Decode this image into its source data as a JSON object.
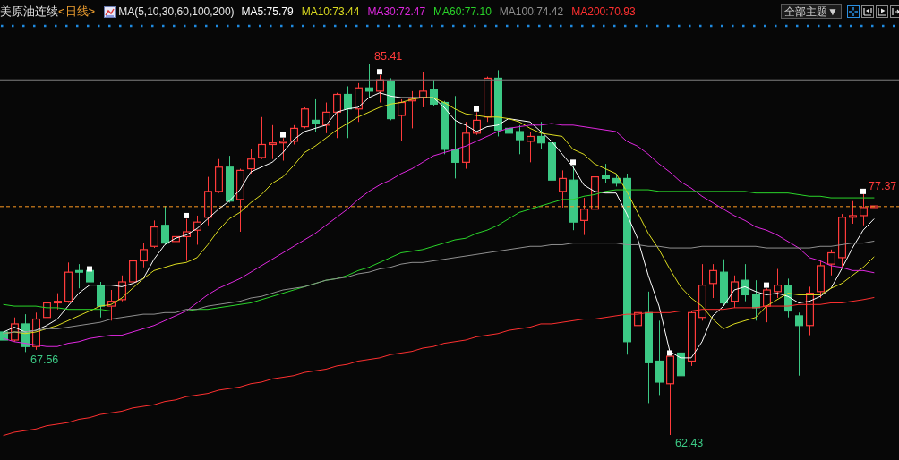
{
  "chart_data": {
    "type": "candlestick",
    "title": "美原油连续",
    "subtitle": "<日线>",
    "legend_title": "MA(5,10,30,60,100,200)",
    "legend": "top left",
    "tick_labels": false,
    "categories": [
      null,
      null,
      null,
      null,
      null,
      null,
      null,
      null,
      null,
      null,
      null,
      null,
      null,
      null,
      null,
      null,
      null,
      null,
      null,
      null,
      null,
      null,
      null,
      null,
      null,
      null,
      null,
      null,
      null,
      null,
      null,
      null,
      null,
      null,
      null,
      null,
      null,
      null,
      null,
      null,
      null,
      null,
      null,
      null,
      null,
      null,
      null,
      null,
      null,
      null,
      null,
      null,
      null,
      null,
      null,
      null,
      null,
      null,
      null,
      null,
      null,
      null,
      null,
      null,
      null,
      null,
      null,
      null,
      null,
      null,
      null,
      null,
      null,
      null,
      null,
      null,
      null,
      null,
      null,
      null,
      null,
      null
    ],
    "ohlc": [
      [
        68.8,
        69.4,
        67.6,
        68.3
      ],
      [
        68.3,
        69.7,
        68.2,
        69.3
      ],
      [
        69.3,
        69.9,
        67.56,
        67.9
      ],
      [
        67.9,
        70.0,
        67.7,
        69.6
      ],
      [
        69.7,
        71.0,
        69.5,
        70.6
      ],
      [
        70.6,
        71.2,
        70.2,
        70.7
      ],
      [
        70.7,
        73.1,
        70.6,
        72.5
      ],
      [
        72.6,
        73.0,
        71.5,
        72.5
      ],
      [
        72.6,
        72.6,
        71.2,
        71.9
      ],
      [
        71.7,
        71.9,
        69.7,
        70.4
      ],
      [
        70.4,
        71.4,
        69.5,
        70.7
      ],
      [
        70.8,
        72.3,
        70.7,
        71.9
      ],
      [
        71.9,
        73.5,
        71.6,
        73.2
      ],
      [
        73.2,
        74.3,
        72.8,
        73.9
      ],
      [
        74.1,
        75.7,
        74.0,
        75.3
      ],
      [
        75.4,
        76.6,
        74.2,
        74.3
      ],
      [
        74.4,
        75.8,
        73.7,
        74.7
      ],
      [
        74.7,
        75.8,
        73.2,
        75.0
      ],
      [
        75.1,
        76.0,
        74.2,
        75.6
      ],
      [
        75.9,
        78.4,
        75.4,
        77.5
      ],
      [
        77.5,
        79.5,
        77.4,
        79.0
      ],
      [
        79.0,
        79.7,
        76.8,
        76.9
      ],
      [
        77.0,
        78.9,
        75.0,
        78.8
      ],
      [
        78.9,
        80.1,
        78.6,
        79.5
      ],
      [
        79.6,
        82.1,
        79.5,
        80.4
      ],
      [
        80.4,
        81.6,
        79.5,
        80.5
      ],
      [
        80.5,
        80.8,
        79.4,
        80.6
      ],
      [
        80.6,
        81.6,
        80.4,
        81.4
      ],
      [
        81.5,
        82.7,
        81.4,
        82.6
      ],
      [
        81.9,
        83.2,
        81.2,
        81.7
      ],
      [
        81.6,
        83.0,
        81.1,
        82.4
      ],
      [
        82.4,
        83.6,
        80.8,
        83.5
      ],
      [
        83.5,
        84.0,
        80.8,
        82.6
      ],
      [
        82.6,
        84.2,
        81.8,
        83.9
      ],
      [
        83.9,
        85.41,
        83.3,
        83.7
      ],
      [
        83.7,
        84.7,
        83.0,
        84.4
      ],
      [
        84.3,
        84.5,
        81.9,
        82.0
      ],
      [
        82.2,
        83.2,
        80.6,
        83.0
      ],
      [
        83.1,
        83.7,
        81.4,
        83.2
      ],
      [
        83.3,
        84.9,
        82.7,
        83.7
      ],
      [
        83.8,
        84.4,
        82.8,
        82.9
      ],
      [
        83.0,
        83.1,
        79.8,
        80.1
      ],
      [
        80.1,
        83.4,
        78.3,
        79.3
      ],
      [
        79.3,
        81.8,
        78.9,
        81.1
      ],
      [
        81.1,
        82.4,
        81.0,
        81.9
      ],
      [
        82.1,
        84.6,
        81.8,
        84.5
      ],
      [
        84.5,
        85.0,
        80.9,
        81.3
      ],
      [
        81.4,
        82.3,
        80.2,
        81.1
      ],
      [
        81.2,
        81.6,
        79.8,
        80.7
      ],
      [
        80.6,
        81.2,
        79.3,
        80.9
      ],
      [
        80.9,
        81.8,
        80.1,
        80.5
      ],
      [
        80.5,
        80.7,
        77.7,
        78.2
      ],
      [
        77.5,
        78.8,
        76.5,
        78.3
      ],
      [
        78.2,
        79.1,
        75.1,
        75.6
      ],
      [
        75.7,
        77.1,
        74.8,
        76.4
      ],
      [
        76.4,
        78.9,
        75.3,
        78.4
      ],
      [
        78.5,
        79.2,
        78.0,
        78.3
      ],
      [
        78.3,
        78.6,
        77.8,
        78.0
      ],
      [
        78.3,
        78.6,
        67.4,
        68.2
      ],
      [
        69.2,
        73.0,
        68.9,
        70.0
      ],
      [
        70.0,
        71.3,
        64.4,
        66.9
      ],
      [
        67.0,
        69.5,
        64.9,
        65.7
      ],
      [
        65.6,
        67.3,
        62.43,
        67.3
      ],
      [
        67.5,
        69.3,
        65.6,
        66.1
      ],
      [
        67.0,
        70.1,
        66.7,
        70.0
      ],
      [
        69.7,
        73.0,
        69.5,
        71.7
      ],
      [
        71.8,
        73.0,
        70.9,
        72.6
      ],
      [
        72.5,
        73.3,
        70.4,
        70.6
      ],
      [
        70.7,
        72.3,
        70.3,
        71.9
      ],
      [
        72.0,
        73.0,
        70.7,
        71.1
      ],
      [
        71.1,
        72.0,
        69.5,
        70.3
      ],
      [
        70.4,
        71.5,
        69.4,
        71.4
      ],
      [
        71.3,
        72.7,
        70.9,
        71.7
      ],
      [
        71.7,
        72.1,
        69.7,
        70.1
      ],
      [
        69.8,
        70.0,
        66.1,
        69.2
      ],
      [
        69.2,
        71.6,
        68.6,
        71.2
      ],
      [
        71.3,
        73.2,
        70.9,
        72.9
      ],
      [
        73.0,
        73.9,
        72.3,
        73.7
      ],
      [
        73.4,
        76.1,
        72.8,
        75.9
      ],
      [
        75.9,
        76.9,
        75.5,
        76.0
      ],
      [
        76.0,
        77.37,
        75.4,
        76.5
      ],
      [
        76.5,
        76.6,
        76.5,
        76.6
      ]
    ],
    "value_labels": [
      null,
      null,
      "67.56",
      null,
      null,
      null,
      null,
      null,
      null,
      null,
      null,
      null,
      null,
      null,
      null,
      null,
      null,
      null,
      null,
      null,
      null,
      null,
      null,
      null,
      null,
      null,
      null,
      null,
      null,
      null,
      null,
      null,
      null,
      null,
      "85.41",
      null,
      null,
      null,
      null,
      null,
      null,
      null,
      null,
      null,
      null,
      null,
      null,
      null,
      null,
      null,
      null,
      null,
      null,
      null,
      null,
      null,
      null,
      null,
      null,
      null,
      null,
      null,
      "62.43",
      null,
      null,
      null,
      null,
      null,
      null,
      null,
      null,
      null,
      null,
      null,
      null,
      null,
      null,
      null,
      null,
      null,
      "77.37",
      null
    ],
    "colors": [
      "#3cc985",
      "#ff3b3b",
      "#3cc985",
      "#ff3b3b",
      "#ff3b3b",
      "#ff3b3b",
      "#ff3b3b",
      "#3cc985",
      "#3cc985",
      "#3cc985",
      "#ff3b3b",
      "#ff3b3b",
      "#ff3b3b",
      "#ff3b3b",
      "#ff3b3b",
      "#3cc985",
      "#ff3b3b",
      "#ff3b3b",
      "#ff3b3b",
      "#ff3b3b",
      "#ff3b3b",
      "#3cc985",
      "#ff3b3b",
      "#ff3b3b",
      "#ff3b3b",
      "#ff3b3b",
      "#ff3b3b",
      "#ff3b3b",
      "#ff3b3b",
      "#3cc985",
      "#ff3b3b",
      "#ff3b3b",
      "#3cc985",
      "#ff3b3b",
      "#3cc985",
      "#ff3b3b",
      "#3cc985",
      "#ff3b3b",
      "#ff3b3b",
      "#ff3b3b",
      "#3cc985",
      "#3cc985",
      "#3cc985",
      "#ff3b3b",
      "#ff3b3b",
      "#ff3b3b",
      "#3cc985",
      "#3cc985",
      "#3cc985",
      "#ff3b3b",
      "#3cc985",
      "#3cc985",
      "#ff3b3b",
      "#3cc985",
      "#ff3b3b",
      "#ff3b3b",
      "#3cc985",
      "#3cc985",
      "#3cc985",
      "#ff3b3b",
      "#3cc985",
      "#3cc985",
      "#ff3b3b",
      "#3cc985",
      "#ff3b3b",
      "#ff3b3b",
      "#ff3b3b",
      "#3cc985",
      "#ff3b3b",
      "#3cc985",
      "#3cc985",
      "#ff3b3b",
      "#ff3b3b",
      "#3cc985",
      "#3cc985",
      "#ff3b3b",
      "#ff3b3b",
      "#ff3b3b",
      "#ff3b3b",
      "#ff3b3b",
      "#ff3b3b",
      "#ff3b3b"
    ],
    "series": [
      {
        "name": "MA5:75.79",
        "type": "line",
        "color": "#ffffff",
        "values": [
          68.8,
          69.1,
          68.8,
          68.9,
          69.2,
          69.6,
          70.4,
          71.2,
          71.7,
          71.7,
          71.7,
          71.6,
          71.8,
          72.1,
          73.3,
          74.2,
          74.6,
          74.8,
          75.2,
          75.8,
          76.4,
          76.9,
          77.6,
          78.7,
          79.0,
          79.3,
          79.9,
          80.7,
          81.2,
          81.4,
          81.6,
          82.4,
          82.6,
          82.7,
          83.3,
          83.6,
          83.4,
          83.3,
          83.3,
          83.3,
          83.3,
          82.7,
          81.9,
          81.6,
          81.2,
          81.5,
          81.6,
          82.0,
          81.9,
          81.8,
          81.2,
          80.6,
          79.8,
          79.0,
          77.9,
          77.5,
          77.4,
          77.4,
          76.1,
          74.6,
          72.3,
          70.4,
          67.6,
          67.2,
          67.2,
          68.2,
          69.8,
          70.4,
          71.4,
          71.6,
          71.3,
          71.1,
          71.2,
          71.0,
          70.6,
          70.7,
          71.0,
          71.5,
          72.7,
          74.0,
          75.1,
          75.79
        ]
      },
      {
        "name": "MA10:73.44",
        "type": "line",
        "color": "#dcdc20",
        "values": [
          68.7,
          68.8,
          68.7,
          68.8,
          69.0,
          69.2,
          69.5,
          69.8,
          70.1,
          70.4,
          70.5,
          70.9,
          71.5,
          72.1,
          72.6,
          72.8,
          73.0,
          73.1,
          73.4,
          74.2,
          75.1,
          75.8,
          76.2,
          76.8,
          77.3,
          78.0,
          78.4,
          79.1,
          79.9,
          80.3,
          80.8,
          81.3,
          81.7,
          82.1,
          82.4,
          82.7,
          82.9,
          83.0,
          83.2,
          83.3,
          83.3,
          83.0,
          82.6,
          82.3,
          82.2,
          82.1,
          82.1,
          82.0,
          81.8,
          81.4,
          81.1,
          81.0,
          80.9,
          80.1,
          79.8,
          79.2,
          78.9,
          78.6,
          77.5,
          76.2,
          74.9,
          73.9,
          72.7,
          71.6,
          70.9,
          70.4,
          69.6,
          69.0,
          69.3,
          69.5,
          69.7,
          70.4,
          70.8,
          71.2,
          71.1,
          71.1,
          71.1,
          71.5,
          71.8,
          72.3,
          72.8,
          73.44
        ]
      },
      {
        "name": "MA30:72.47",
        "type": "line",
        "color": "#e028e0",
        "values": [
          68.4,
          68.2,
          68.1,
          68.0,
          67.9,
          67.9,
          68.1,
          68.2,
          68.4,
          68.5,
          68.6,
          68.6,
          68.8,
          69.0,
          69.2,
          69.5,
          69.8,
          70.1,
          70.6,
          71.1,
          71.5,
          71.8,
          72.1,
          72.5,
          72.9,
          73.3,
          73.7,
          74.1,
          74.5,
          74.9,
          75.4,
          75.9,
          76.4,
          77.0,
          77.5,
          77.9,
          78.2,
          78.6,
          78.9,
          79.3,
          79.7,
          79.9,
          80.1,
          80.3,
          80.6,
          80.9,
          81.2,
          81.4,
          81.5,
          81.6,
          81.6,
          81.7,
          81.6,
          81.6,
          81.5,
          81.4,
          81.3,
          81.2,
          80.6,
          80.3,
          79.8,
          79.2,
          78.7,
          78.1,
          77.7,
          77.2,
          76.8,
          76.4,
          76.0,
          75.7,
          75.3,
          75.1,
          74.8,
          74.4,
          74.0,
          73.4,
          73.2,
          72.9,
          72.8,
          72.6,
          72.6,
          72.47
        ]
      },
      {
        "name": "MA60:77.10",
        "type": "line",
        "color": "#2ad52a",
        "values": [
          70.5,
          70.4,
          70.4,
          70.4,
          70.3,
          70.3,
          70.2,
          70.2,
          70.2,
          70.2,
          70.1,
          70.1,
          70.1,
          70.1,
          70.1,
          70.1,
          70.1,
          70.1,
          70.2,
          70.2,
          70.3,
          70.4,
          70.5,
          70.6,
          70.8,
          71.0,
          71.2,
          71.4,
          71.6,
          71.8,
          72.0,
          72.1,
          72.3,
          72.6,
          72.8,
          73.1,
          73.4,
          73.7,
          73.8,
          73.9,
          74.1,
          74.3,
          74.5,
          74.6,
          74.9,
          75.1,
          75.4,
          75.8,
          76.2,
          76.4,
          76.6,
          76.8,
          77.0,
          77.0,
          77.2,
          77.3,
          77.5,
          77.6,
          77.6,
          77.6,
          77.6,
          77.5,
          77.5,
          77.5,
          77.5,
          77.5,
          77.5,
          77.5,
          77.5,
          77.5,
          77.4,
          77.4,
          77.4,
          77.4,
          77.3,
          77.2,
          77.2,
          77.1,
          77.1,
          77.1,
          77.1,
          77.1
        ]
      },
      {
        "name": "MA100:74.42",
        "type": "line",
        "color": "#909090",
        "values": [
          68.7,
          68.8,
          68.8,
          68.9,
          69.0,
          69.0,
          69.1,
          69.2,
          69.3,
          69.4,
          69.6,
          69.7,
          69.8,
          69.9,
          69.9,
          70.0,
          70.0,
          70.2,
          70.2,
          70.4,
          70.5,
          70.6,
          70.7,
          70.9,
          71.0,
          71.2,
          71.4,
          71.5,
          71.6,
          71.8,
          72.0,
          72.1,
          72.2,
          72.4,
          72.5,
          72.7,
          72.8,
          73.0,
          73.1,
          73.1,
          73.2,
          73.3,
          73.4,
          73.5,
          73.6,
          73.7,
          73.8,
          73.9,
          74.0,
          74.1,
          74.1,
          74.2,
          74.2,
          74.3,
          74.3,
          74.3,
          74.3,
          74.3,
          74.2,
          74.2,
          74.1,
          74.1,
          74.0,
          74.0,
          74.0,
          74.1,
          74.1,
          74.1,
          74.1,
          74.1,
          74.1,
          74.0,
          74.0,
          74.0,
          74.0,
          74.0,
          74.1,
          74.1,
          74.2,
          74.3,
          74.3,
          74.42
        ]
      },
      {
        "name": "MA200:70.93",
        "type": "line",
        "color": "#ff3030",
        "values": [
          62.4,
          62.6,
          62.7,
          62.8,
          63.0,
          63.1,
          63.2,
          63.4,
          63.5,
          63.7,
          63.8,
          63.9,
          64.1,
          64.2,
          64.3,
          64.5,
          64.6,
          64.8,
          64.9,
          65.0,
          65.2,
          65.3,
          65.4,
          65.6,
          65.7,
          65.9,
          66.0,
          66.1,
          66.3,
          66.4,
          66.5,
          66.7,
          66.8,
          67.0,
          67.1,
          67.2,
          67.4,
          67.5,
          67.6,
          67.8,
          67.9,
          68.1,
          68.2,
          68.3,
          68.5,
          68.6,
          68.7,
          68.9,
          69.0,
          69.1,
          69.3,
          69.3,
          69.4,
          69.5,
          69.6,
          69.6,
          69.7,
          69.8,
          69.9,
          69.9,
          70.0,
          70.0,
          70.0,
          70.1,
          70.1,
          70.2,
          70.2,
          70.2,
          70.3,
          70.3,
          70.3,
          70.4,
          70.4,
          70.4,
          70.5,
          70.5,
          70.5,
          70.6,
          70.6,
          70.7,
          70.8,
          70.93
        ]
      },
      {
        "type": "scatter",
        "marker": "square",
        "color": "#ffffff",
        "values": [
          null,
          null,
          null,
          null,
          null,
          null,
          null,
          null,
          72.7,
          null,
          null,
          null,
          null,
          null,
          null,
          null,
          null,
          76.0,
          null,
          null,
          null,
          null,
          null,
          null,
          null,
          null,
          81.0,
          null,
          null,
          null,
          null,
          null,
          null,
          null,
          null,
          84.9,
          null,
          null,
          null,
          null,
          null,
          null,
          null,
          null,
          82.6,
          null,
          null,
          null,
          null,
          null,
          null,
          null,
          null,
          79.3,
          null,
          null,
          null,
          null,
          null,
          null,
          null,
          null,
          67.5,
          null,
          null,
          null,
          null,
          null,
          null,
          null,
          null,
          71.7,
          null,
          null,
          null,
          null,
          null,
          null,
          null,
          null,
          77.5,
          null
        ]
      }
    ],
    "ref_lines": [
      {
        "axis": "y",
        "value": 84.4,
        "color": "#808080",
        "line_style": "solid"
      },
      {
        "axis": "y",
        "value": 76.56,
        "color": "#ff9a22",
        "line_style": "dashed"
      }
    ],
    "annotations": [
      "全部主题▼"
    ]
  }
}
